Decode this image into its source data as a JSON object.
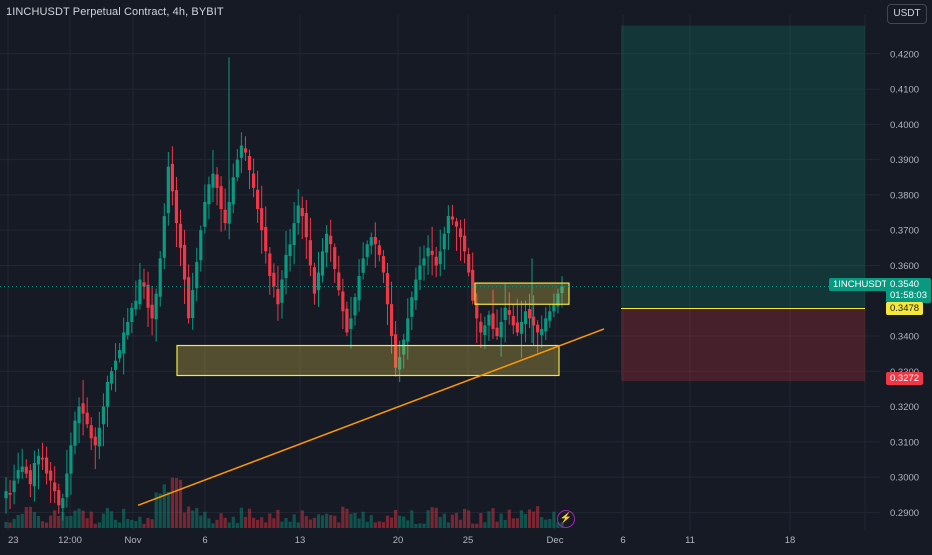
{
  "header": {
    "title": "1INCHUSDT Perpetual Contract, 4h, BYBIT",
    "currency_button": "USDT"
  },
  "price_tags": {
    "symbol_label": "1INCHUSDT.P",
    "last_price": "0.3540",
    "countdown": "01:58:03",
    "entry_price": "0.3478",
    "stop_price": "0.3272"
  },
  "chart_data": {
    "type": "candlestick",
    "y_axis": {
      "position": "right",
      "range": [
        0.285,
        0.431
      ],
      "ticks": [
        "0.4200",
        "0.4100",
        "0.4000",
        "0.3900",
        "0.3800",
        "0.3700",
        "0.3600",
        "0.3400",
        "0.3300",
        "0.3200",
        "0.3100",
        "0.3000",
        "0.2900"
      ]
    },
    "x_axis": {
      "ticks": [
        "23",
        "12:00",
        "Nov",
        "6",
        "13",
        "20",
        "25",
        "Dec",
        "6",
        "11",
        "18"
      ]
    },
    "grid": true,
    "close_series": [
      0.296,
      0.295,
      0.299,
      0.302,
      0.303,
      0.301,
      0.298,
      0.304,
      0.306,
      0.305,
      0.301,
      0.299,
      0.296,
      0.292,
      0.294,
      0.301,
      0.309,
      0.316,
      0.32,
      0.318,
      0.315,
      0.311,
      0.309,
      0.314,
      0.32,
      0.327,
      0.33,
      0.333,
      0.336,
      0.341,
      0.344,
      0.348,
      0.35,
      0.356,
      0.354,
      0.348,
      0.345,
      0.352,
      0.362,
      0.374,
      0.388,
      0.381,
      0.372,
      0.365,
      0.356,
      0.345,
      0.353,
      0.361,
      0.37,
      0.378,
      0.383,
      0.386,
      0.382,
      0.376,
      0.372,
      0.378,
      0.385,
      0.39,
      0.394,
      0.392,
      0.387,
      0.382,
      0.376,
      0.37,
      0.364,
      0.357,
      0.354,
      0.349,
      0.356,
      0.363,
      0.366,
      0.372,
      0.377,
      0.374,
      0.368,
      0.36,
      0.352,
      0.358,
      0.364,
      0.369,
      0.366,
      0.359,
      0.353,
      0.347,
      0.341,
      0.345,
      0.351,
      0.357,
      0.362,
      0.366,
      0.368,
      0.366,
      0.363,
      0.358,
      0.349,
      0.34,
      0.331,
      0.334,
      0.339,
      0.345,
      0.351,
      0.356,
      0.36,
      0.362,
      0.365,
      0.363,
      0.36,
      0.364,
      0.369,
      0.374,
      0.373,
      0.371,
      0.368,
      0.364,
      0.358,
      0.35,
      0.345,
      0.341,
      0.343,
      0.346,
      0.342,
      0.34,
      0.344,
      0.348,
      0.346,
      0.343,
      0.341,
      0.344,
      0.347,
      0.345,
      0.343,
      0.341,
      0.342,
      0.345,
      0.347,
      0.349,
      0.352,
      0.354
    ]
  },
  "annotations": {
    "support_zone_top": 0.3373,
    "support_zone_bottom": 0.3288,
    "resistance_zone_top": 0.355,
    "resistance_zone_bottom": 0.349,
    "trendline_start": {
      "x_label": "Oct 31",
      "price": 0.292
    },
    "trendline_end": {
      "x_label": "Dec 5",
      "price": 0.342
    },
    "position_entry": 0.3478,
    "position_target": 0.428,
    "position_stop": 0.3272,
    "last_price_value": 0.354
  },
  "colors": {
    "background": "#161a25",
    "grid": "#232733",
    "up": "#089981",
    "down": "#f23645",
    "axis_text": "#b2b5be",
    "zone_stroke": "#f6e83a",
    "zone_fill": "rgba(214,190,70,0.32)",
    "trendline": "#ff9800",
    "profit_fill": "rgba(8,153,129,0.22)",
    "loss_fill": "rgba(242,54,69,0.22)",
    "entry_line": "#f6e83a"
  },
  "icons": {
    "lightning": "lightning-icon"
  }
}
